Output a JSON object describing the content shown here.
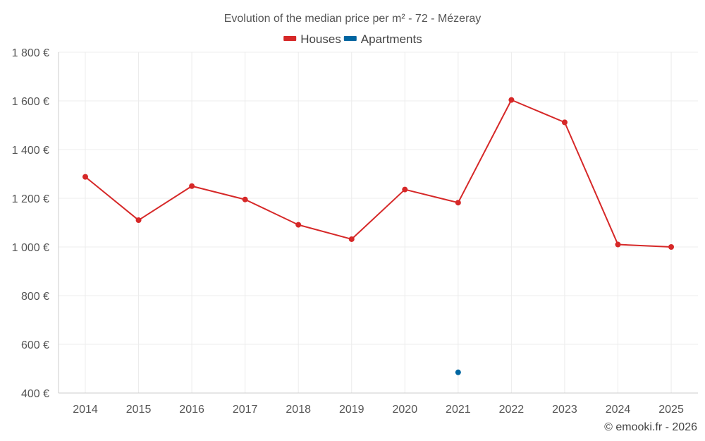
{
  "chart_data": {
    "type": "line",
    "title": "Evolution of the median price per m² - 72 - Mézeray",
    "xlabel": "",
    "ylabel": "",
    "categories": [
      "2014",
      "2015",
      "2016",
      "2017",
      "2018",
      "2019",
      "2020",
      "2021",
      "2022",
      "2023",
      "2024",
      "2025"
    ],
    "ylim": [
      400,
      1800
    ],
    "yticks": [
      400,
      600,
      800,
      1000,
      1200,
      1400,
      1600,
      1800
    ],
    "ytick_labels": [
      "400 €",
      "600 €",
      "800 €",
      "1 000 €",
      "1 200 €",
      "1 400 €",
      "1 600 €",
      "1 800 €"
    ],
    "grid": true,
    "legend_position": "top-center",
    "series": [
      {
        "name": "Houses",
        "color": "#d62828",
        "values": [
          1288,
          1110,
          1250,
          1195,
          1091,
          1032,
          1236,
          1182,
          1604,
          1512,
          1010,
          1000
        ]
      },
      {
        "name": "Apartments",
        "color": "#0066a1",
        "values": [
          null,
          null,
          null,
          null,
          null,
          null,
          null,
          485,
          null,
          null,
          null,
          null
        ]
      }
    ]
  },
  "credit": "© emooki.fr - 2026"
}
